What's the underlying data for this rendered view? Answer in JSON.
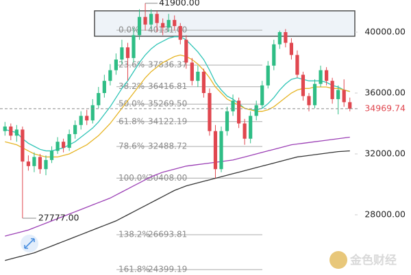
{
  "chart_data": {
    "type": "candlestick",
    "ylim": [
      24045,
      42112
    ],
    "yticks": [
      {
        "value": 40000,
        "label": "40000.00"
      },
      {
        "value": 36000,
        "label": "36000.00"
      },
      {
        "value": 32000,
        "label": "32000.00"
      },
      {
        "value": 28000,
        "label": "28000.00"
      }
    ],
    "up_color": "#2ebd85",
    "down_color": "#e0474f",
    "candles": {
      "open": [
        33500,
        33800,
        33200,
        33600,
        31500,
        31200,
        31800,
        31000,
        31600,
        32200,
        32800,
        32400,
        33300,
        33900,
        34500,
        34200,
        35200,
        36000,
        36800,
        37500,
        38200,
        39000,
        38300,
        39800,
        41000,
        40500,
        41200,
        40600,
        40300,
        40800,
        40400,
        39500,
        38000,
        36800,
        37400,
        36000,
        33500,
        31000,
        33500,
        34800,
        35500,
        34000,
        33000,
        34500,
        35200,
        36500,
        37800,
        39200,
        40000,
        39300,
        38500,
        37200,
        35800,
        35200,
        36600,
        37500,
        36800,
        35600,
        36200,
        35400
      ],
      "high": [
        34100,
        34000,
        33900,
        33800,
        31900,
        32100,
        32000,
        31900,
        32500,
        33100,
        33000,
        33600,
        34200,
        34800,
        34900,
        35600,
        36400,
        37200,
        37900,
        38600,
        39500,
        39300,
        40300,
        41500,
        41900,
        41500,
        41400,
        40900,
        41200,
        41100,
        40600,
        39800,
        38300,
        37800,
        37600,
        36300,
        33900,
        33800,
        35100,
        35900,
        35700,
        34300,
        34800,
        35500,
        36800,
        38100,
        39500,
        40100,
        40200,
        39600,
        38800,
        37400,
        36000,
        36900,
        37800,
        37700,
        37000,
        36500,
        36900,
        35700
      ],
      "low": [
        33200,
        32900,
        32800,
        27777,
        30900,
        30800,
        30700,
        30600,
        31400,
        32000,
        32100,
        32200,
        33000,
        33600,
        33900,
        34000,
        35000,
        35700,
        36500,
        37200,
        37900,
        36800,
        38000,
        39500,
        40100,
        40200,
        40000,
        39800,
        40000,
        40100,
        39200,
        37600,
        36500,
        36400,
        35700,
        33200,
        30408,
        30800,
        33200,
        34500,
        33700,
        32600,
        32700,
        34200,
        35000,
        36300,
        37500,
        38900,
        39000,
        38200,
        37000,
        35500,
        34800,
        35000,
        36400,
        36500,
        35300,
        34600,
        35100,
        34800
      ],
      "close": [
        33800,
        33200,
        33600,
        31500,
        31200,
        31800,
        31000,
        31600,
        32200,
        32800,
        32400,
        33300,
        33900,
        34500,
        34200,
        35200,
        36000,
        36800,
        37500,
        38200,
        39000,
        38300,
        39800,
        41000,
        40500,
        41200,
        40600,
        40300,
        40800,
        40400,
        39500,
        38000,
        36800,
        37400,
        36000,
        33500,
        31000,
        33500,
        34800,
        35500,
        34000,
        33000,
        34500,
        35200,
        36500,
        37800,
        39200,
        40000,
        39300,
        38500,
        37200,
        35800,
        35200,
        36600,
        37500,
        36800,
        35600,
        36200,
        35400,
        34969.74
      ]
    },
    "moving_averages": [
      {
        "color": "#2ec4b6",
        "values": [
          33600,
          33500,
          33400,
          33000,
          32700,
          32500,
          32300,
          32200,
          32200,
          32300,
          32400,
          32600,
          32800,
          33100,
          33400,
          33700,
          34100,
          34600,
          35100,
          35700,
          36300,
          36800,
          37400,
          38000,
          38500,
          38900,
          39200,
          39400,
          39600,
          39700,
          39700,
          39500,
          39100,
          38700,
          38200,
          37500,
          36700,
          36200,
          35800,
          35600,
          35300,
          35000,
          34900,
          34900,
          35000,
          35300,
          35700,
          36200,
          36600,
          36900,
          37000,
          36900,
          36800,
          36800,
          36800,
          36700,
          36500,
          36400,
          36200,
          36100
        ]
      },
      {
        "color": "#e6b422",
        "values": [
          32800,
          32700,
          32600,
          32400,
          32200,
          32000,
          31900,
          31800,
          31800,
          31800,
          31900,
          32000,
          32200,
          32400,
          32600,
          32900,
          33200,
          33600,
          34000,
          34500,
          35000,
          35500,
          36000,
          36500,
          37000,
          37400,
          37700,
          38000,
          38200,
          38400,
          38500,
          38400,
          38200,
          37900,
          37500,
          37000,
          36400,
          36000,
          35600,
          35400,
          35200,
          35000,
          34900,
          34800,
          34800,
          34900,
          35100,
          35400,
          35700,
          36000,
          36200,
          36300,
          36300,
          36400,
          36400,
          36400,
          36300,
          36300,
          36200,
          36100
        ]
      },
      {
        "color": "#9b3fb5",
        "values": [
          26600,
          26700,
          26800,
          26900,
          27000,
          27150,
          27300,
          27450,
          27600,
          27750,
          27900,
          28050,
          28200,
          28350,
          28500,
          28650,
          28800,
          28950,
          29100,
          29300,
          29500,
          29700,
          29900,
          30100,
          30300,
          30500,
          30650,
          30800,
          30900,
          31000,
          31100,
          31200,
          31250,
          31300,
          31350,
          31400,
          31450,
          31500,
          31550,
          31600,
          31700,
          31800,
          31900,
          32000,
          32100,
          32200,
          32300,
          32400,
          32500,
          32600,
          32650,
          32700,
          32750,
          32800,
          32850,
          32900,
          32950,
          33000,
          33050,
          33100
        ]
      },
      {
        "color": "#333333",
        "values": [
          25000,
          25100,
          25200,
          25300,
          25400,
          25500,
          25650,
          25800,
          25950,
          26100,
          26250,
          26400,
          26550,
          26700,
          26850,
          27000,
          27150,
          27300,
          27450,
          27600,
          27800,
          28000,
          28200,
          28400,
          28600,
          28800,
          29000,
          29200,
          29400,
          29600,
          29750,
          29900,
          30000,
          30100,
          30200,
          30300,
          30400,
          30500,
          30600,
          30700,
          30800,
          30900,
          31000,
          31100,
          31200,
          31300,
          31400,
          31500,
          31600,
          31700,
          31800,
          31850,
          31900,
          31950,
          32000,
          32050,
          32100,
          32150,
          32175,
          32200
        ]
      }
    ],
    "range_box": [
      39730,
      41400
    ],
    "fib_levels": [
      {
        "ratio": "0.0%",
        "price": {
          "value": 40131,
          "label": "40131.00"
        }
      },
      {
        "ratio": "23.6%",
        "price": 37836.37
      },
      {
        "ratio": "38.2%",
        "price": 36416.81
      },
      {
        "ratio": "50.0%",
        "price": {
          "value": 35269.5,
          "label": "35269.50"
        }
      },
      {
        "ratio": "61.8%",
        "price": 34122.19
      },
      {
        "ratio": "78.6%",
        "price": 32488.72
      },
      {
        "ratio": "100.0%",
        "price": {
          "value": 30408,
          "label": "30408.00"
        }
      },
      {
        "ratio": "138.2%",
        "price": 26693.81
      },
      {
        "ratio": "161.8%",
        "price": 24399.19
      }
    ],
    "high_label": {
      "value": 41900,
      "label": "41900.00"
    },
    "low_label": {
      "value": 27777,
      "label": "27777.00"
    },
    "current_price": 34969.74
  },
  "watermark": "金色财经"
}
